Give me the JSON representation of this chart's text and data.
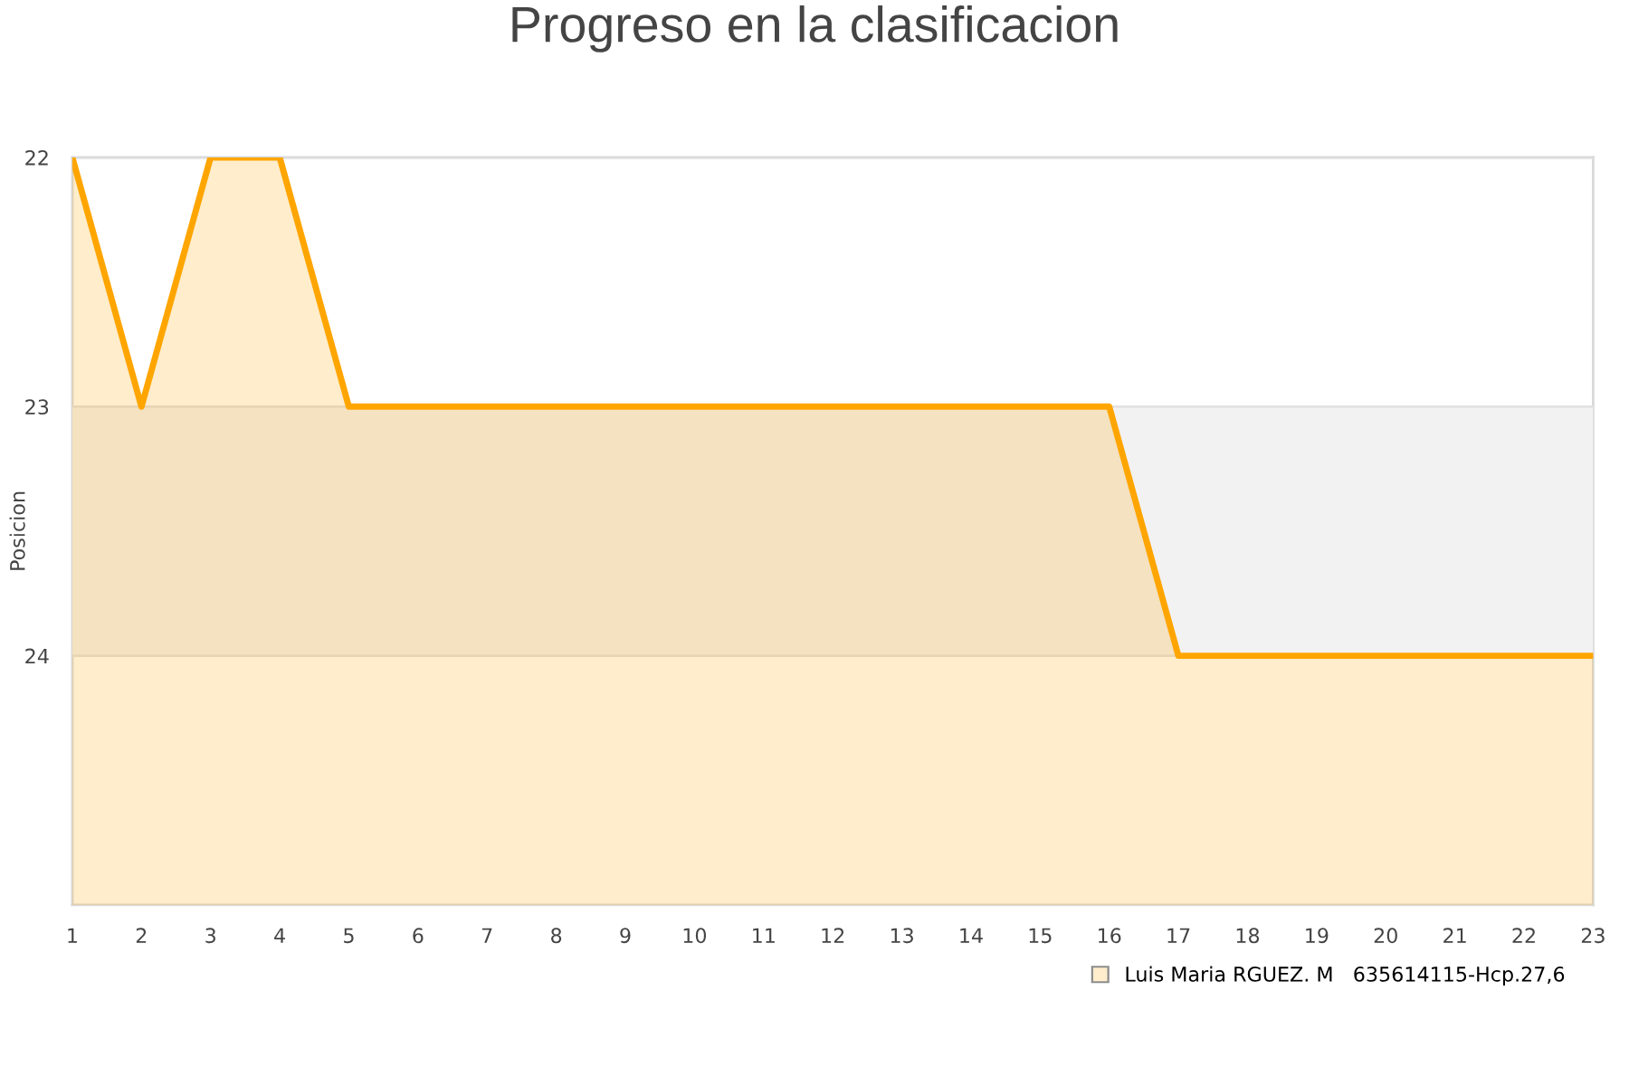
{
  "chart_data": {
    "type": "area",
    "title": "Progreso en la clasificacion",
    "ylabel": "Posicion",
    "x": [
      1,
      2,
      3,
      4,
      5,
      6,
      7,
      8,
      9,
      10,
      11,
      12,
      13,
      14,
      15,
      16,
      17,
      18,
      19,
      20,
      21,
      22,
      23
    ],
    "series": [
      {
        "name": "Luis Maria RGUEZ. M   635614115-Hcp.27,6",
        "color": "#ffa500",
        "values": [
          22,
          23,
          22,
          22,
          23,
          23,
          23,
          23,
          23,
          23,
          23,
          23,
          23,
          23,
          23,
          23,
          24,
          24,
          24,
          24,
          24,
          24,
          24
        ]
      }
    ],
    "xlim": [
      1,
      23
    ],
    "xticks": [
      1,
      2,
      3,
      4,
      5,
      6,
      7,
      8,
      9,
      10,
      11,
      12,
      13,
      14,
      15,
      16,
      17,
      18,
      19,
      20,
      21,
      22,
      23
    ],
    "ylim": [
      25,
      22
    ],
    "yticks": [
      22,
      23,
      24
    ],
    "bands": [
      {
        "axis": "y",
        "from": 23,
        "to": 24,
        "color": "#f2f2f2"
      }
    ],
    "grid": "y",
    "legend": "bottom right",
    "line_style": "solid"
  }
}
